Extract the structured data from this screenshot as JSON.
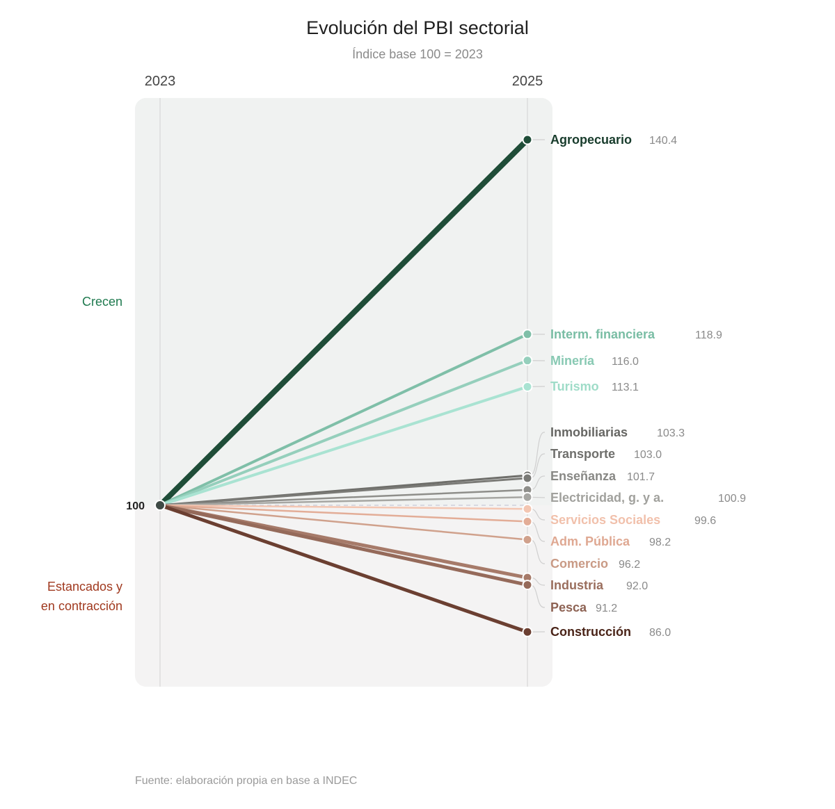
{
  "chart_data": {
    "type": "slope",
    "title": "Evolución del PBI sectorial",
    "subtitle": "Índice base 100 = 2023",
    "x": [
      "2023",
      "2025"
    ],
    "base_value": 100,
    "base_label": "100",
    "ylim": [
      80,
      146
    ],
    "groups": {
      "growing": {
        "label": "Crecen",
        "color": "#1f7a4f"
      },
      "contracting": {
        "label_lines": [
          "Estancados y",
          "en contracción"
        ],
        "color": "#a0391f"
      }
    },
    "series": [
      {
        "name": "Agropecuario",
        "start": 100,
        "end": 140.4,
        "value_text": "140.4",
        "color": "#1f4d38",
        "label_color": "#183c2c",
        "width": 8
      },
      {
        "name": "Interm. financiera",
        "start": 100,
        "end": 118.9,
        "value_text": "118.9",
        "color": "#7fbfa8",
        "label_color": "#79bda4",
        "width": 4
      },
      {
        "name": "Minería",
        "start": 100,
        "end": 116.0,
        "value_text": "116.0",
        "color": "#95cfbc",
        "label_color": "#88c9b3",
        "width": 4
      },
      {
        "name": "Turismo",
        "start": 100,
        "end": 113.1,
        "value_text": "113.1",
        "color": "#a9e3d2",
        "label_color": "#9fdcc8",
        "width": 4
      },
      {
        "name": "Inmobiliarias",
        "start": 100,
        "end": 103.3,
        "value_text": "103.3",
        "color": "#6e6e6a",
        "label_color": "#666663",
        "width": 3
      },
      {
        "name": "Transporte",
        "start": 100,
        "end": 103.0,
        "value_text": "103.0",
        "color": "#7a7a76",
        "label_color": "#6f6f6c",
        "width": 3
      },
      {
        "name": "Enseñanza",
        "start": 100,
        "end": 101.7,
        "value_text": "101.7",
        "color": "#8e8e8a",
        "label_color": "#888885",
        "width": 2.5
      },
      {
        "name": "Electricidad, g. y a.",
        "start": 100,
        "end": 100.9,
        "value_text": "100.9",
        "color": "#a6a6a2",
        "label_color": "#a1a19d",
        "width": 2.5
      },
      {
        "name": "Servicios Sociales",
        "start": 100,
        "end": 99.6,
        "value_text": "99.6",
        "color": "#f3c6b2",
        "label_color": "#f1c0ab",
        "width": 2.5
      },
      {
        "name": "Adm. Pública",
        "start": 100,
        "end": 98.2,
        "value_text": "98.2",
        "color": "#e3ad97",
        "label_color": "#dfa892",
        "width": 2.5
      },
      {
        "name": "Comercio",
        "start": 100,
        "end": 96.2,
        "value_text": "96.2",
        "color": "#d0a18c",
        "label_color": "#c99a85",
        "width": 2.5
      },
      {
        "name": "Industria",
        "start": 100,
        "end": 92.0,
        "value_text": "92.0",
        "color": "#a67a69",
        "label_color": "#9a6e5d",
        "width": 5
      },
      {
        "name": "Pesca",
        "start": 100,
        "end": 91.2,
        "value_text": "91.2",
        "color": "#956a5a",
        "label_color": "#8d6253",
        "width": 5
      },
      {
        "name": "Construcción",
        "start": 100,
        "end": 86.0,
        "value_text": "86.0",
        "color": "#6b3f31",
        "label_color": "#4a2418",
        "width": 5
      }
    ],
    "source": "Fuente: elaboración propia en base a INDEC"
  }
}
